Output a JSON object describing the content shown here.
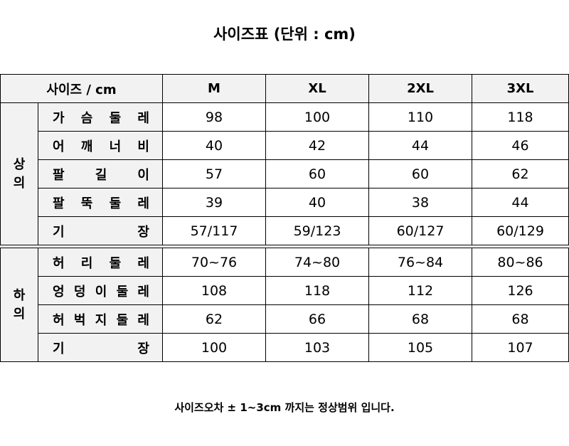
{
  "title": "사이즈표 (단위 : cm)",
  "header": [
    "사이즈 / cm",
    "M",
    "XL",
    "2XL",
    "3XL"
  ],
  "sections": [
    {
      "name": "상의",
      "rows": [
        {
          "label": "가 슴 둘 레",
          "values": [
            "98",
            "100",
            "110",
            "118"
          ]
        },
        {
          "label": "어 깨 너 비",
          "values": [
            "40",
            "42",
            "44",
            "46"
          ]
        },
        {
          "label": "팔 길 이",
          "values": [
            "57",
            "60",
            "60",
            "62"
          ]
        },
        {
          "label": "팔 뚝 둘 레",
          "values": [
            "39",
            "40",
            "38",
            "44"
          ]
        },
        {
          "label": "기 장",
          "values": [
            "57/117",
            "59/123",
            "60/127",
            "60/129"
          ]
        }
      ]
    },
    {
      "name": "하의",
      "rows": [
        {
          "label": "허 리 둘 레",
          "values": [
            "70~76",
            "74~80",
            "76~84",
            "80~86"
          ]
        },
        {
          "label": "엉 덩 이 둘 레",
          "values": [
            "108",
            "118",
            "112",
            "126"
          ]
        },
        {
          "label": "허 벅 지 둘 레",
          "values": [
            "62",
            "66",
            "68",
            "68"
          ]
        },
        {
          "label": "기 장",
          "values": [
            "100",
            "103",
            "105",
            "107"
          ]
        }
      ]
    }
  ],
  "footer": "사이즈오차 ± 1~3cm 까지는 정상범위 입니다."
}
